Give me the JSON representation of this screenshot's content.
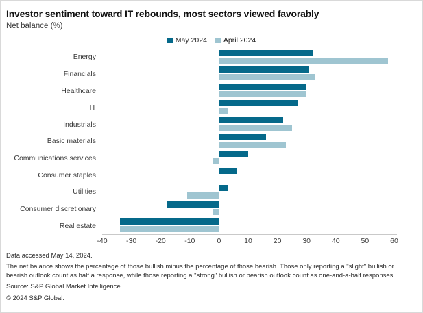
{
  "header": {
    "title": "Investor sentiment toward IT rebounds, most sectors viewed favorably",
    "subtitle": "Net balance (%)"
  },
  "legend": [
    {
      "label": "May 2024",
      "color": "#05698a"
    },
    {
      "label": "April 2024",
      "color": "#9fc5d1"
    }
  ],
  "chart_data": {
    "type": "bar",
    "orientation": "horizontal",
    "title": "Investor sentiment toward IT rebounds, most sectors viewed favorably",
    "xlabel": "Net balance (%)",
    "categories": [
      "Energy",
      "Financials",
      "Healthcare",
      "IT",
      "Industrials",
      "Basic materials",
      "Communications services",
      "Consumer staples",
      "Utilities",
      "Consumer discretionary",
      "Real estate"
    ],
    "series": [
      {
        "name": "May 2024",
        "color": "#05698a",
        "values": [
          32,
          31,
          30,
          27,
          22,
          16,
          10,
          6,
          3,
          -18,
          -34
        ]
      },
      {
        "name": "April 2024",
        "color": "#9fc5d1",
        "values": [
          58,
          33,
          30,
          3,
          25,
          23,
          -2,
          0,
          -11,
          -2,
          -34
        ]
      }
    ],
    "xlim": [
      -40,
      60
    ],
    "xticks": [
      -40,
      -30,
      -20,
      -10,
      0,
      10,
      20,
      30,
      40,
      50,
      60
    ],
    "grid": false,
    "legend_position": "top-center"
  },
  "footer": {
    "accessed": "Data accessed May 14, 2024.",
    "note": "The net balance shows the percentage of those bullish minus the percentage of those bearish. Those only reporting a \"slight\" bullish or bearish outlook count as half a response, while those reporting a \"strong\" bullish or bearish outlook count as one-and-a-half responses.",
    "source": "Source: S&P Global Market Intelligence.",
    "copyright": "© 2024 S&P Global."
  }
}
